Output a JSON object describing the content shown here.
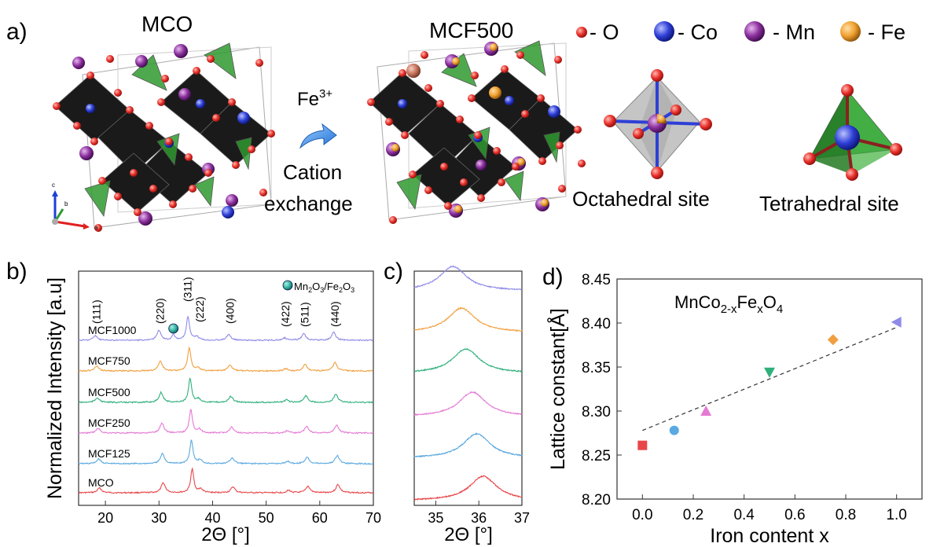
{
  "panel_a": {
    "label": "a)",
    "left_title": "MCO",
    "right_title": "MCF500",
    "arrow_top": "Fe",
    "arrow_top_sup": "3+",
    "arrow_bottom_1": "Cation",
    "arrow_bottom_2": "exchange",
    "axis_c": "c",
    "axis_b": "b",
    "axis_a": "a",
    "octa_label": "Octahedral site",
    "tetra_label": "Tetrahedral site",
    "legend": [
      {
        "symbol": "- O",
        "color": "#e8302a"
      },
      {
        "symbol": "- Co",
        "color": "#2f3fd6"
      },
      {
        "symbol": "- Mn",
        "color": "#8a2f9c"
      },
      {
        "symbol": "- Fe",
        "color": "#f0a030"
      }
    ],
    "colors": {
      "octahedron": "#1a1a1a",
      "tetrahedron": "#2f9a2f",
      "o_atom": "#e8302a",
      "co_atom": "#2f3fd6",
      "mn_atom": "#8a2f9c",
      "fe_atom": "#f0a030"
    }
  },
  "chart_data": [
    {
      "panel": "b)",
      "type": "line",
      "xlabel": "2Θ [°]",
      "ylabel": "Normalized Intensity [a.u]",
      "xlim": [
        15,
        70
      ],
      "xticks": [
        20,
        30,
        40,
        50,
        60,
        70
      ],
      "peaks": [
        {
          "pos": 18.3,
          "h": 0.2
        },
        {
          "pos": 30.2,
          "h": 0.42
        },
        {
          "pos": 35.6,
          "h": 1.0
        },
        {
          "pos": 37.2,
          "h": 0.15
        },
        {
          "pos": 43.2,
          "h": 0.25
        },
        {
          "pos": 53.6,
          "h": 0.1
        },
        {
          "pos": 57.2,
          "h": 0.28
        },
        {
          "pos": 62.8,
          "h": 0.35
        }
      ],
      "series": [
        {
          "name": "MCO",
          "color": "#e8474a",
          "shift": 0.6
        },
        {
          "name": "MCF125",
          "color": "#5aa9e0",
          "shift": 0.45
        },
        {
          "name": "MCF250",
          "color": "#e47ad4",
          "shift": 0.35
        },
        {
          "name": "MCF500",
          "color": "#2fb07a",
          "shift": 0.2
        },
        {
          "name": "MCF750",
          "color": "#f0a040",
          "shift": 0.05
        },
        {
          "name": "MCF1000",
          "color": "#8f8be8",
          "shift": -0.2
        }
      ],
      "hkl_labels": [
        {
          "text": "(111)",
          "pos": 18.3
        },
        {
          "text": "(220)",
          "pos": 30.2
        },
        {
          "text": "(311)",
          "pos": 35.3
        },
        {
          "text": "(222)",
          "pos": 37.6
        },
        {
          "text": "(400)",
          "pos": 43.2
        },
        {
          "text": "(422)",
          "pos": 53.6
        },
        {
          "text": "(511)",
          "pos": 57.2
        },
        {
          "text": "(440)",
          "pos": 62.8
        }
      ],
      "impurity_marker": {
        "pos": 32.7,
        "color": "#2fb0a0"
      },
      "impurity_legend": {
        "main1": "Mn",
        "sub1": "2",
        "main2": "O",
        "sub2": "3",
        "main3": "/Fe",
        "sub3": "2",
        "main4": "O",
        "sub4": "3"
      }
    },
    {
      "panel": "c)",
      "type": "line",
      "xlabel": "2Θ [°]",
      "xlim": [
        34.5,
        37
      ],
      "xticks": [
        35,
        36,
        37
      ],
      "series": [
        {
          "color": "#e8474a",
          "peak": 36.1
        },
        {
          "color": "#5aa9e0",
          "peak": 35.95
        },
        {
          "color": "#e47ad4",
          "peak": 35.85
        },
        {
          "color": "#2fb07a",
          "peak": 35.7
        },
        {
          "color": "#f0a040",
          "peak": 35.6
        },
        {
          "color": "#8f8be8",
          "peak": 35.4
        }
      ]
    },
    {
      "panel": "d)",
      "type": "scatter",
      "title_main1": "MnCo",
      "title_sub1": "2-x",
      "title_main2": "Fe",
      "title_sub2": "x",
      "title_main3": "O",
      "title_sub3": "4",
      "xlabel": "Iron content x",
      "ylabel": "Lattice constant[Å]",
      "xlim": [
        -0.1,
        1.1
      ],
      "ylim": [
        8.2,
        8.45
      ],
      "xticks": [
        0.0,
        0.2,
        0.4,
        0.6,
        0.8,
        1.0
      ],
      "yticks": [
        8.2,
        8.25,
        8.3,
        8.35,
        8.4,
        8.45
      ],
      "points": [
        {
          "x": 0.0,
          "y": 8.261,
          "marker": "square",
          "color": "#e8474a"
        },
        {
          "x": 0.125,
          "y": 8.278,
          "marker": "circle",
          "color": "#5aa9e0"
        },
        {
          "x": 0.25,
          "y": 8.3,
          "marker": "triangle-up",
          "color": "#e47ad4"
        },
        {
          "x": 0.5,
          "y": 8.344,
          "marker": "triangle-down",
          "color": "#2fb07a"
        },
        {
          "x": 0.75,
          "y": 8.381,
          "marker": "diamond",
          "color": "#f0a040"
        },
        {
          "x": 1.0,
          "y": 8.401,
          "marker": "triangle-left",
          "color": "#8f8be8"
        }
      ],
      "fit": {
        "x": [
          0.0,
          1.0
        ],
        "y": [
          8.278,
          8.395
        ]
      }
    }
  ]
}
